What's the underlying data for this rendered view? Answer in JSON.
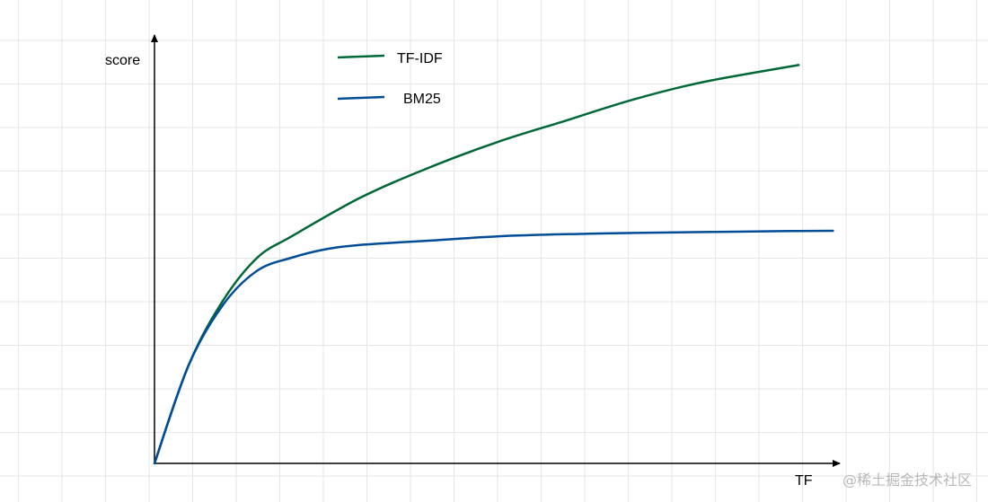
{
  "chart_data": {
    "type": "line",
    "title": "",
    "xlabel": "TF",
    "ylabel": "score",
    "xlim": [
      0,
      10
    ],
    "ylim": [
      0,
      10
    ],
    "grid": true,
    "legend_position": "top",
    "series": [
      {
        "name": "TF-IDF",
        "color": "#006837",
        "x": [
          0,
          0.5,
          1,
          1.5,
          2,
          3,
          4,
          5,
          6,
          7,
          8,
          9.4
        ],
        "y": [
          0,
          2.3,
          3.8,
          4.8,
          5.3,
          6.2,
          6.9,
          7.5,
          8.0,
          8.5,
          8.9,
          9.3
        ]
      },
      {
        "name": "BM25",
        "color": "#004c97",
        "x": [
          0,
          0.5,
          1,
          1.5,
          2,
          2.5,
          3,
          4,
          5,
          6,
          7,
          8,
          9,
          9.9
        ],
        "y": [
          0,
          2.3,
          3.7,
          4.5,
          4.8,
          5.0,
          5.1,
          5.2,
          5.3,
          5.35,
          5.38,
          5.4,
          5.42,
          5.43
        ]
      }
    ]
  },
  "watermark": "@稀土掘金技术社区"
}
